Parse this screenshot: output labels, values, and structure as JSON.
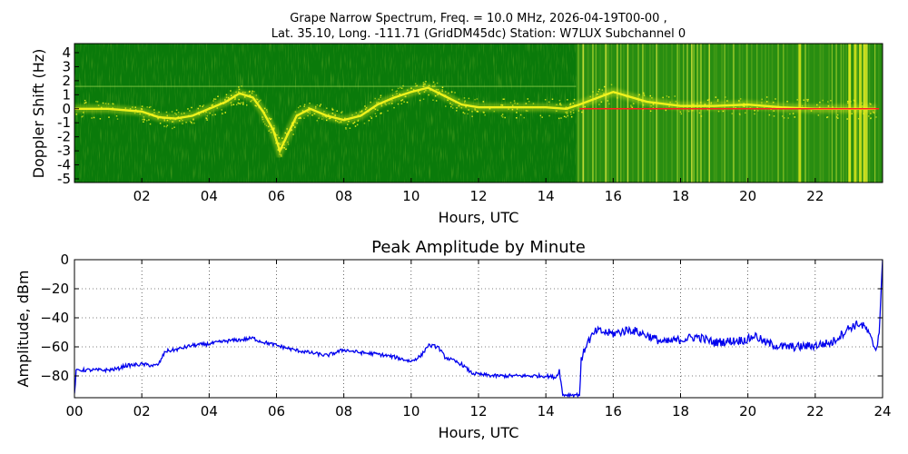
{
  "figure": {
    "top_title_line1": "Grape Narrow Spectrum, Freq. = 10.0 MHz, 2026-04-19T00-00 ,",
    "top_title_line2": "Lat.  35.10, Long. -111.71 (GridDM45dc) Station: W7LUX Subchannel 0"
  },
  "colors": {
    "spectrogram_bg": "#0a7a0a",
    "spectrogram_hi": "#f5f51e",
    "carrier_line": "#ff2020",
    "amplitude_line": "#0000ee"
  },
  "chart_data": [
    {
      "type": "heatmap",
      "title": "",
      "xlabel": "Hours, UTC",
      "ylabel": "Doppler Shift (Hz)",
      "x_range": [
        0,
        24
      ],
      "ylim": [
        -5,
        5
      ],
      "x_ticks": [
        "02",
        "04",
        "06",
        "08",
        "10",
        "12",
        "14",
        "16",
        "18",
        "20",
        "22"
      ],
      "x_tick_values": [
        2,
        4,
        6,
        8,
        10,
        12,
        14,
        16,
        18,
        20,
        22
      ],
      "y_ticks": [
        "4",
        "3",
        "2",
        "1",
        "0",
        "-1",
        "-2",
        "-3",
        "-4",
        "-5"
      ],
      "y_tick_values": [
        4,
        3,
        2,
        1,
        0,
        -1,
        -2,
        -3,
        -4,
        -5
      ],
      "grid": false,
      "doppler_trace": {
        "hours": [
          0.0,
          1.0,
          2.0,
          2.5,
          3.0,
          3.5,
          4.0,
          4.5,
          4.9,
          5.3,
          5.6,
          5.9,
          6.1,
          6.3,
          6.6,
          7.0,
          7.5,
          8.0,
          8.5,
          9.0,
          9.5,
          10.0,
          10.5,
          11.0,
          11.5,
          12.0,
          13.0,
          14.0,
          14.6,
          15.0,
          16.0,
          17.0,
          18.0,
          19.0,
          20.0,
          21.0,
          22.0,
          23.0,
          23.8
        ],
        "doppler_hz": [
          0.0,
          0.0,
          -0.2,
          -0.6,
          -0.7,
          -0.5,
          0.0,
          0.5,
          1.1,
          0.8,
          -0.2,
          -1.5,
          -3.0,
          -2.0,
          -0.5,
          0.0,
          -0.5,
          -0.8,
          -0.5,
          0.3,
          0.8,
          1.2,
          1.5,
          0.9,
          0.3,
          0.1,
          0.1,
          0.1,
          0.0,
          0.3,
          1.2,
          0.5,
          0.2,
          0.2,
          0.3,
          0.1,
          0.0,
          0.0,
          0.0
        ]
      }
    },
    {
      "type": "line",
      "title": "Peak Amplitude by Minute",
      "xlabel": "Hours, UTC",
      "ylabel": "Amplitude, dBm",
      "xlim": [
        0,
        24
      ],
      "ylim": [
        -95,
        0
      ],
      "x_ticks": [
        "00",
        "02",
        "04",
        "06",
        "08",
        "10",
        "12",
        "14",
        "16",
        "18",
        "20",
        "22",
        "24"
      ],
      "x_tick_values": [
        0,
        2,
        4,
        6,
        8,
        10,
        12,
        14,
        16,
        18,
        20,
        22,
        24
      ],
      "y_ticks": [
        "0",
        "−20",
        "−40",
        "−60",
        "−80"
      ],
      "y_tick_values": [
        0,
        -20,
        -40,
        -60,
        -80
      ],
      "grid": true,
      "series": [
        {
          "x": [
            0.0,
            0.05,
            0.1,
            0.5,
            1.0,
            1.3,
            1.5,
            2.0,
            2.4,
            2.5,
            2.7,
            3.0,
            3.5,
            4.0,
            4.5,
            5.0,
            5.3,
            5.5,
            6.0,
            6.5,
            7.0,
            7.5,
            8.0,
            8.5,
            9.0,
            9.5,
            10.0,
            10.3,
            10.5,
            10.8,
            11.0,
            11.5,
            11.8,
            12.0,
            12.5,
            13.0,
            13.5,
            14.0,
            14.3,
            14.4,
            14.5,
            14.6,
            14.8,
            15.0,
            15.05,
            15.2,
            15.5,
            16.0,
            16.5,
            17.0,
            17.5,
            18.0,
            18.5,
            19.0,
            19.5,
            20.0,
            20.2,
            20.5,
            21.0,
            21.5,
            22.0,
            22.5,
            23.0,
            23.3,
            23.5,
            23.8,
            23.9,
            24.0
          ],
          "y": [
            -93,
            -77,
            -76,
            -76,
            -76,
            -75,
            -73,
            -72,
            -73,
            -72,
            -63,
            -62,
            -59,
            -58,
            -56,
            -55,
            -54,
            -56,
            -59,
            -62,
            -64,
            -66,
            -62,
            -64,
            -65,
            -67,
            -70,
            -66,
            -59,
            -60,
            -67,
            -72,
            -78,
            -79,
            -80,
            -80,
            -80,
            -80,
            -81,
            -76,
            -93,
            -93,
            -93,
            -93,
            -70,
            -58,
            -49,
            -51,
            -48,
            -52,
            -57,
            -55,
            -53,
            -57,
            -56,
            -55,
            -52,
            -57,
            -60,
            -60,
            -59,
            -57,
            -47,
            -44,
            -47,
            -62,
            -50,
            0
          ]
        }
      ]
    }
  ]
}
